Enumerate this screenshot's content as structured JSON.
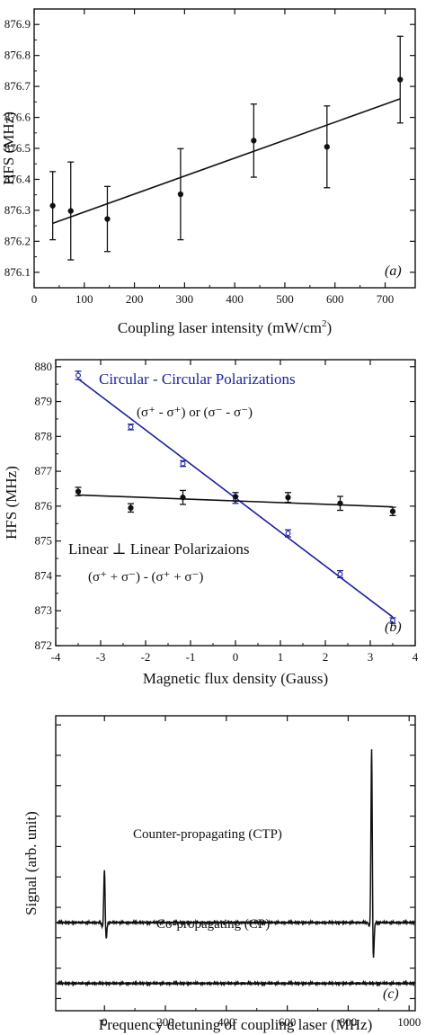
{
  "chart_data": [
    {
      "panel": "a",
      "type": "scatter",
      "panel_label": "(a)",
      "xlabel": "Coupling laser intensity (mW/cm",
      "xlabel_sup": "2",
      "xlabel_end": ")",
      "ylabel": "HFS (MHz)",
      "xlim": [
        0,
        760
      ],
      "ylim": [
        876.05,
        876.95
      ],
      "xticks": [
        "0",
        "100",
        "200",
        "300",
        "400",
        "500",
        "600",
        "700"
      ],
      "yticks": [
        "876.1",
        "876.2",
        "876.3",
        "876.4",
        "876.5",
        "876.6",
        "876.7",
        "876.8",
        "876.9"
      ],
      "points": [
        {
          "x": 37,
          "y": 876.315,
          "err": 0.11
        },
        {
          "x": 73,
          "y": 876.298,
          "err": 0.158
        },
        {
          "x": 146,
          "y": 876.272,
          "err": 0.105
        },
        {
          "x": 292,
          "y": 876.352,
          "err": 0.147
        },
        {
          "x": 438,
          "y": 876.525,
          "err": 0.118
        },
        {
          "x": 584,
          "y": 876.505,
          "err": 0.132
        },
        {
          "x": 730,
          "y": 876.722,
          "err": 0.14
        }
      ],
      "fit": {
        "x": [
          37,
          730
        ],
        "y": [
          876.258,
          876.66
        ]
      }
    },
    {
      "panel": "b",
      "type": "scatter",
      "panel_label": "(b)",
      "xlabel": "Magnetic flux density (Gauss)",
      "ylabel": "HFS (MHz)",
      "xlim": [
        -4,
        4
      ],
      "ylim": [
        872,
        880.2
      ],
      "xticks": [
        "-4",
        "-3",
        "-2",
        "-1",
        "0",
        "1",
        "2",
        "3",
        "4"
      ],
      "yticks": [
        "872",
        "873",
        "874",
        "875",
        "876",
        "877",
        "878",
        "879",
        "880"
      ],
      "series": [
        {
          "name": "Circular - Circular Polarizations",
          "formula": "(σ⁺ - σ⁺) or (σ⁻ - σ⁻)",
          "color": "#1b1f9e",
          "marker": "open",
          "points": [
            {
              "x": -3.5,
              "y": 879.75,
              "err": 0.12
            },
            {
              "x": -2.33,
              "y": 878.27,
              "err": 0.08
            },
            {
              "x": -1.17,
              "y": 877.22,
              "err": 0.08
            },
            {
              "x": 0,
              "y": 876.18,
              "err": 0.1
            },
            {
              "x": 1.17,
              "y": 875.22,
              "err": 0.1
            },
            {
              "x": 2.33,
              "y": 874.05,
              "err": 0.1
            },
            {
              "x": 3.5,
              "y": 872.72,
              "err": 0.08
            }
          ],
          "fit": {
            "x": [
              -3.5,
              3.5
            ],
            "y": [
              879.65,
              872.82
            ]
          }
        },
        {
          "name": "Linear ⊥ Linear Polarizaions",
          "formula": "(σ⁺ + σ⁻) - (σ⁺ + σ⁻)",
          "color": "#111111",
          "marker": "filled",
          "points": [
            {
              "x": -3.5,
              "y": 876.42,
              "err": 0.12
            },
            {
              "x": -2.33,
              "y": 875.95,
              "err": 0.12
            },
            {
              "x": -1.17,
              "y": 876.25,
              "err": 0.2
            },
            {
              "x": 0,
              "y": 876.27,
              "err": 0.12
            },
            {
              "x": 1.17,
              "y": 876.25,
              "err": 0.14
            },
            {
              "x": 2.33,
              "y": 876.08,
              "err": 0.2
            },
            {
              "x": 3.5,
              "y": 875.85,
              "err": 0.12
            }
          ],
          "fit": {
            "x": [
              -3.5,
              3.5
            ],
            "y": [
              876.32,
              875.98
            ]
          }
        }
      ]
    },
    {
      "panel": "c",
      "type": "line",
      "panel_label": "(c)",
      "xlabel": "Frequency detuning of coupling laser (MHz)",
      "ylabel": "Signal (arb. unit)",
      "xlim": [
        -160,
        1020
      ],
      "ylim": [
        -1.45,
        3.4
      ],
      "xticks": [
        "0",
        "200",
        "400",
        "600",
        "800",
        "1000"
      ],
      "series": [
        {
          "name": "Counter-propagating (CTP)",
          "baseline": 0,
          "peaks": [
            {
              "x": 0,
              "height": 0.92,
              "dip": -0.3
            },
            {
              "x": 877,
              "height": 2.95,
              "dip": -0.7
            }
          ]
        },
        {
          "name": "Co-propagating (CP)",
          "baseline": -1.0,
          "peaks": []
        }
      ]
    }
  ]
}
